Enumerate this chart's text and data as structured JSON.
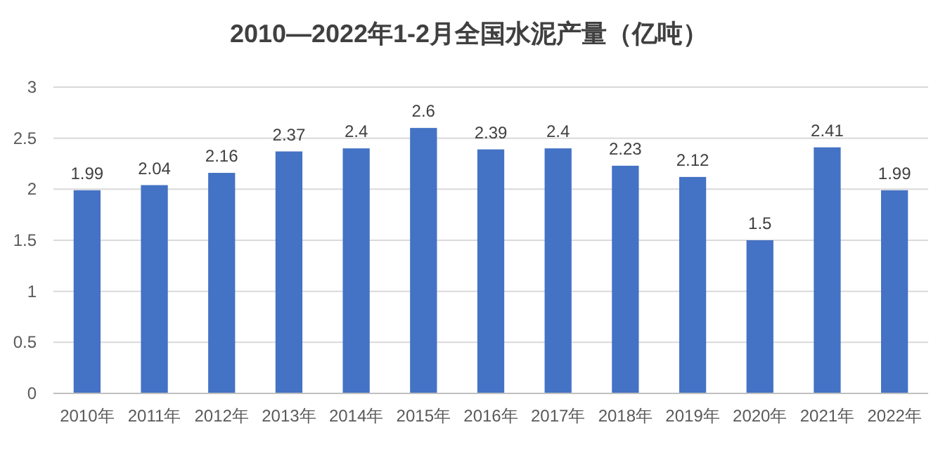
{
  "chart_data": {
    "type": "bar",
    "title": "2010—2022年1-2月全国水泥产量（亿吨）",
    "categories": [
      "2010年",
      "2011年",
      "2012年",
      "2013年",
      "2014年",
      "2015年",
      "2016年",
      "2017年",
      "2018年",
      "2019年",
      "2020年",
      "2021年",
      "2022年"
    ],
    "values": [
      1.99,
      2.04,
      2.16,
      2.37,
      2.4,
      2.6,
      2.39,
      2.4,
      2.23,
      2.12,
      1.5,
      2.41,
      1.99
    ],
    "color": "#4472c4",
    "ylim": [
      0,
      3
    ],
    "yticks": [
      0,
      0.5,
      1,
      1.5,
      2,
      2.5,
      3
    ],
    "grid": "y",
    "data_labels": true
  }
}
